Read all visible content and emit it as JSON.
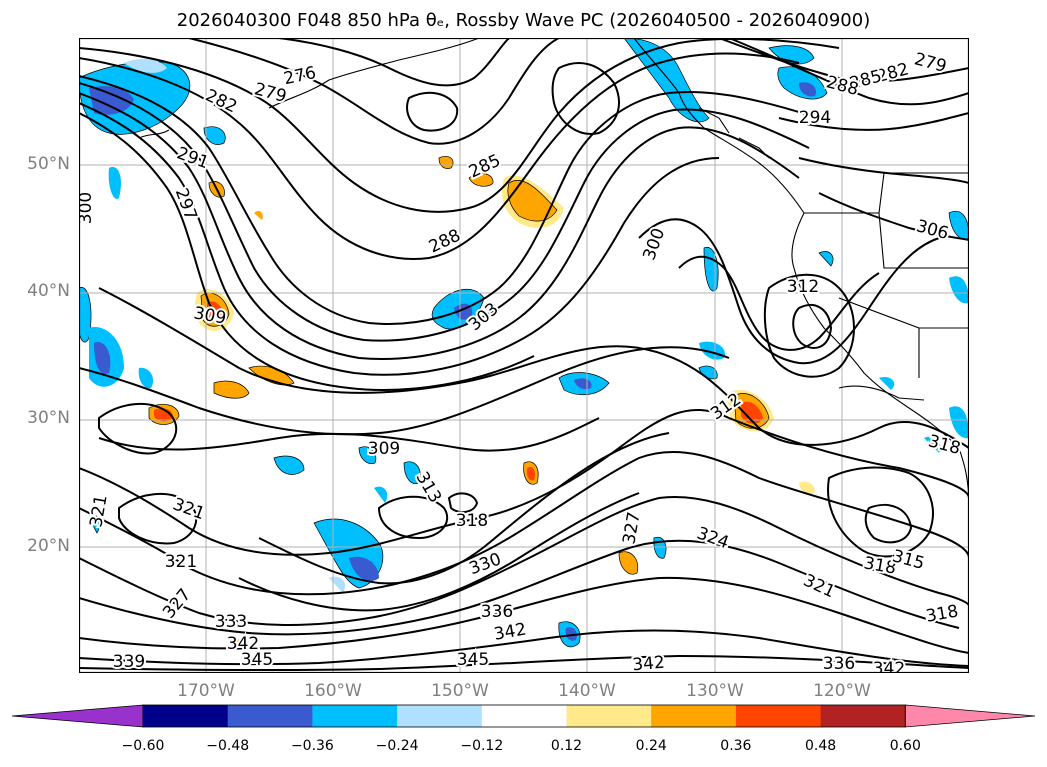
{
  "title": "2026040300 F048 850 hPa θₑ, Rossby Wave PC (2026040500 - 2026040900)",
  "map": {
    "lat_labels": [
      "50°N",
      "40°N",
      "30°N",
      "20°N"
    ],
    "lon_labels": [
      "170°W",
      "160°W",
      "150°W",
      "140°W",
      "130°W",
      "120°W"
    ],
    "grid": true,
    "contour_labels": [
      {
        "id": "c276",
        "text": "276"
      },
      {
        "id": "c279a",
        "text": "279"
      },
      {
        "id": "c282a",
        "text": "282"
      },
      {
        "id": "c291",
        "text": "291"
      },
      {
        "id": "c297",
        "text": "297"
      },
      {
        "id": "c300a",
        "text": "300"
      },
      {
        "id": "c285a",
        "text": "285"
      },
      {
        "id": "c288a",
        "text": "288"
      },
      {
        "id": "c300b",
        "text": "300"
      },
      {
        "id": "c303",
        "text": "303"
      },
      {
        "id": "c309a",
        "text": "309"
      },
      {
        "id": "c312a",
        "text": "312"
      },
      {
        "id": "c279b",
        "text": "279"
      },
      {
        "id": "c282b",
        "text": "282"
      },
      {
        "id": "c285b",
        "text": "285"
      },
      {
        "id": "c288b",
        "text": "288"
      },
      {
        "id": "c294",
        "text": "294"
      },
      {
        "id": "c306",
        "text": "306"
      },
      {
        "id": "c312b",
        "text": "312"
      },
      {
        "id": "c318a",
        "text": "318"
      },
      {
        "id": "c309b",
        "text": "309"
      },
      {
        "id": "c313",
        "text": "313"
      },
      {
        "id": "c318b",
        "text": "318"
      },
      {
        "id": "c321a",
        "text": "321"
      },
      {
        "id": "c321b",
        "text": "321"
      },
      {
        "id": "c321c",
        "text": "321"
      },
      {
        "id": "c327a",
        "text": "327"
      },
      {
        "id": "c327b",
        "text": "327"
      },
      {
        "id": "c324",
        "text": "324"
      },
      {
        "id": "c330",
        "text": "330"
      },
      {
        "id": "c333",
        "text": "333"
      },
      {
        "id": "c336a",
        "text": "336"
      },
      {
        "id": "c342a",
        "text": "342"
      },
      {
        "id": "c342b",
        "text": "342"
      },
      {
        "id": "c339",
        "text": "339"
      },
      {
        "id": "c345a",
        "text": "345"
      },
      {
        "id": "c345b",
        "text": "345"
      },
      {
        "id": "c342c",
        "text": "342"
      },
      {
        "id": "c336b",
        "text": "336"
      },
      {
        "id": "c342d",
        "text": "342"
      },
      {
        "id": "c318c",
        "text": "318"
      },
      {
        "id": "c315",
        "text": "315"
      },
      {
        "id": "c318d",
        "text": "318"
      },
      {
        "id": "c321d",
        "text": "321"
      }
    ]
  },
  "colorbar": {
    "levels": [
      "−0.60",
      "−0.48",
      "−0.36",
      "−0.24",
      "−0.12",
      "0.12",
      "0.24",
      "0.36",
      "0.48",
      "0.60"
    ],
    "colors": [
      "#9932cc",
      "#00008b",
      "#3a5bd0",
      "#00bfff",
      "#b0e0ff",
      "#ffffff",
      "#ffe98a",
      "#ffa500",
      "#ff4500",
      "#b22222",
      "#ff88aa"
    ]
  }
}
